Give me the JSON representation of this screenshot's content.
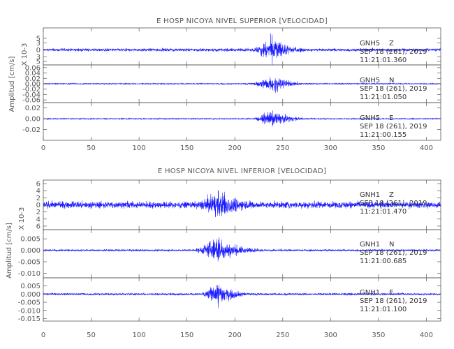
{
  "chart_data": [
    {
      "type": "line",
      "title": "E HOSP NICOYA NIVEL SUPERIOR [VELOCIDAD]",
      "ylabel": "Amplitud [cm/s]",
      "xlim": [
        0,
        415
      ],
      "x_ticks": [
        "0",
        "50",
        "100",
        "150",
        "200",
        "250",
        "300",
        "350",
        "400"
      ],
      "x_tick_values": [
        0,
        50,
        100,
        150,
        200,
        250,
        300,
        350,
        400
      ],
      "series": [
        {
          "scale_label": "X 10-3",
          "ylim": [
            -6.5,
            9.5
          ],
          "y_tick_values": [
            -5,
            -3,
            0,
            3,
            5
          ],
          "y_ticks": [
            "5",
            "3",
            "0",
            "3",
            "5"
          ],
          "peak_amplitude": 8,
          "noise_amplitude": 0.9,
          "burst": {
            "start": 210,
            "peak": 240,
            "end": 290
          },
          "annotation": {
            "station": "GNH5",
            "component": "Z",
            "date": "SEP 18 (261), 2019",
            "time": "11:21:01.360"
          }
        },
        {
          "scale_label": "",
          "ylim": [
            -0.07,
            0.07
          ],
          "y_tick_values": [
            -0.06,
            -0.04,
            -0.02,
            0,
            0.02,
            0.04,
            0.06
          ],
          "y_ticks": [
            "-0.06",
            "-0.04",
            "-0.02",
            "0.00",
            "0.02",
            "0.04",
            "0.06"
          ],
          "peak_amplitude": 0.045,
          "noise_amplitude": 0.003,
          "burst": {
            "start": 210,
            "peak": 240,
            "end": 290
          },
          "annotation": {
            "station": "GNH5",
            "component": "N",
            "date": "SEP 18 (261), 2019",
            "time": "11:21:01.050"
          }
        },
        {
          "scale_label": "",
          "ylim": [
            -0.04,
            0.03
          ],
          "y_tick_values": [
            -0.02,
            0,
            0.02
          ],
          "y_ticks": [
            "-0.02",
            "0.00",
            "0.02"
          ],
          "peak_amplitude": 0.022,
          "noise_amplitude": 0.0015,
          "burst": {
            "start": 212,
            "peak": 240,
            "end": 290
          },
          "annotation": {
            "station": "GNH5",
            "component": "E",
            "date": "SEP 18 (261), 2019",
            "time": "11:21:00.155"
          }
        }
      ]
    },
    {
      "type": "line",
      "title": "E HOSP NICOYA NIVEL INFERIOR [VELOCIDAD]",
      "ylabel": "Amplitud [cm/s]",
      "xlim": [
        0,
        415
      ],
      "x_ticks": [
        "0",
        "50",
        "100",
        "150",
        "200",
        "250",
        "300",
        "350",
        "400"
      ],
      "x_tick_values": [
        0,
        50,
        100,
        150,
        200,
        250,
        300,
        350,
        400
      ],
      "series": [
        {
          "scale_label": "X 10-3",
          "ylim": [
            -7,
            7
          ],
          "y_tick_values": [
            -6,
            -4,
            -2,
            0,
            2,
            4,
            6
          ],
          "y_ticks": [
            "6",
            "4",
            "2",
            "0",
            "2",
            "4",
            "6"
          ],
          "peak_amplitude": 6,
          "noise_amplitude": 1.3,
          "burst": {
            "start": 150,
            "peak": 183,
            "end": 260
          },
          "annotation": {
            "station": "GNH1",
            "component": "Z",
            "date": "SEP 18 (261), 2019",
            "time": "11:21:01.470"
          }
        },
        {
          "scale_label": "",
          "ylim": [
            -0.012,
            0.009
          ],
          "y_tick_values": [
            -0.01,
            -0.005,
            0,
            0.005
          ],
          "y_ticks": [
            "-0.010",
            "-0.005",
            "0.000",
            "0.005"
          ],
          "peak_amplitude": 0.008,
          "noise_amplitude": 0.0006,
          "burst": {
            "start": 150,
            "peak": 182,
            "end": 245
          },
          "annotation": {
            "station": "GNH1",
            "component": "N",
            "date": "SEP 18 (261), 2019",
            "time": "11:21:00.685"
          }
        },
        {
          "scale_label": "",
          "ylim": [
            -0.0165,
            0.01
          ],
          "y_tick_values": [
            -0.015,
            -0.01,
            -0.005,
            0,
            0.005
          ],
          "y_ticks": [
            "-0.015",
            "-0.010",
            "-0.005",
            "0.000",
            "0.005"
          ],
          "peak_amplitude": 0.011,
          "noise_amplitude": 0.0009,
          "burst": {
            "start": 160,
            "peak": 182,
            "end": 230
          },
          "annotation": {
            "station": "GNH1",
            "component": "E",
            "date": "SEP 18 (261), 2019",
            "time": "11:21:01.100"
          }
        }
      ]
    }
  ]
}
